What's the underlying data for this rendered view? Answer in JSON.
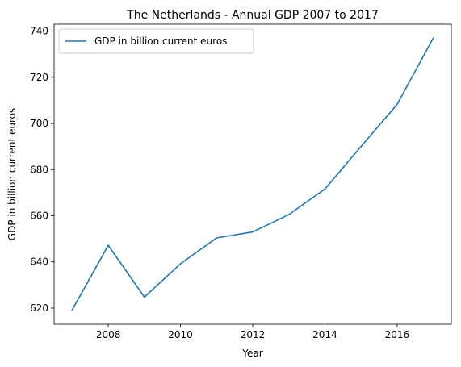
{
  "chart_data": {
    "type": "line",
    "title": "The Netherlands - Annual GDP 2007 to 2017",
    "xlabel": "Year",
    "ylabel": "GDP in billion current euros",
    "x": [
      2007,
      2008,
      2009,
      2010,
      2011,
      2012,
      2013,
      2014,
      2015,
      2016,
      2017
    ],
    "series": [
      {
        "name": "GDP in billion current euros",
        "color": "#1f77b4",
        "values": [
          619.2,
          647.2,
          624.8,
          639.2,
          650.4,
          653.0,
          660.5,
          671.6,
          690.0,
          708.3,
          737.0
        ]
      }
    ],
    "xlim": [
      2006.5,
      2017.5
    ],
    "ylim": [
      613.0,
      743.0
    ],
    "xticks": [
      2008,
      2010,
      2012,
      2014,
      2016
    ],
    "yticks": [
      620,
      640,
      660,
      680,
      700,
      720,
      740
    ],
    "grid": false,
    "legend": "top-left"
  }
}
